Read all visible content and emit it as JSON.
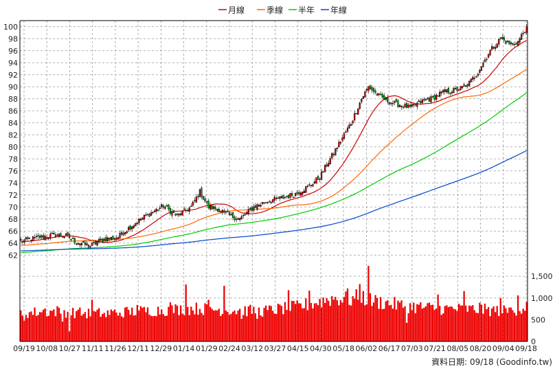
{
  "chart_data": {
    "type": "candlestick",
    "legend": {
      "placement": "top-center",
      "items": [
        {
          "label": "月線",
          "color": "#cc0000"
        },
        {
          "label": "季線",
          "color": "#ff6600"
        },
        {
          "label": "半年",
          "color": "#00cc00"
        },
        {
          "label": "年線",
          "color": "#0044cc"
        }
      ]
    },
    "price_axis": {
      "ylim": [
        61,
        101
      ],
      "ticks": [
        62,
        64,
        66,
        68,
        70,
        72,
        74,
        76,
        78,
        80,
        82,
        84,
        86,
        88,
        90,
        92,
        94,
        96,
        98,
        100
      ],
      "side": "left",
      "grid": true
    },
    "volume_axis": {
      "ylim": [
        0,
        1850
      ],
      "ticks": [
        0,
        500,
        1000,
        1500
      ],
      "tick_labels": [
        "0",
        "500",
        "1,000",
        "1,500"
      ],
      "side": "right",
      "grid": true
    },
    "x_tick_labels": [
      "09/19",
      "10/08",
      "10/27",
      "11/11",
      "11/26",
      "12/11",
      "12/29",
      "01/14",
      "01/29",
      "02/24",
      "03/12",
      "03/27",
      "04/15",
      "04/30",
      "05/18",
      "06/02",
      "06/17",
      "07/03",
      "07/21",
      "08/05",
      "08/20",
      "09/04",
      "09/18"
    ],
    "price_anchors": [
      [
        0,
        64.3
      ],
      [
        10,
        64.9
      ],
      [
        20,
        65.4
      ],
      [
        26,
        65.2
      ],
      [
        32,
        64.2
      ],
      [
        40,
        63.5
      ],
      [
        46,
        64.5
      ],
      [
        56,
        65.0
      ],
      [
        62,
        66.5
      ],
      [
        68,
        67.8
      ],
      [
        76,
        69.2
      ],
      [
        82,
        70.2
      ],
      [
        90,
        68.5
      ],
      [
        98,
        70.0
      ],
      [
        103,
        72.5
      ],
      [
        108,
        70.0
      ],
      [
        114,
        69.6
      ],
      [
        120,
        68.6
      ],
      [
        126,
        68.0
      ],
      [
        134,
        70.0
      ],
      [
        142,
        71.0
      ],
      [
        150,
        71.5
      ],
      [
        158,
        72.2
      ],
      [
        166,
        73.5
      ],
      [
        172,
        75.0
      ],
      [
        178,
        78.0
      ],
      [
        184,
        81.0
      ],
      [
        190,
        84.0
      ],
      [
        196,
        88.0
      ],
      [
        200,
        90.0
      ],
      [
        206,
        88.5
      ],
      [
        212,
        87.5
      ],
      [
        218,
        87.0
      ],
      [
        224,
        86.5
      ],
      [
        230,
        87.5
      ],
      [
        236,
        88.0
      ],
      [
        242,
        89.0
      ],
      [
        250,
        89.5
      ],
      [
        256,
        90.0
      ],
      [
        262,
        92.0
      ],
      [
        266,
        94.0
      ],
      [
        270,
        96.0
      ],
      [
        276,
        98.0
      ],
      [
        282,
        97.0
      ],
      [
        286,
        97.5
      ],
      [
        290,
        99.5
      ]
    ],
    "volume_anchors": [
      [
        0,
        650
      ],
      [
        20,
        700
      ],
      [
        40,
        640
      ],
      [
        60,
        680
      ],
      [
        80,
        720
      ],
      [
        100,
        760
      ],
      [
        120,
        720
      ],
      [
        140,
        700
      ],
      [
        160,
        800
      ],
      [
        170,
        900
      ],
      [
        180,
        1000
      ],
      [
        190,
        960
      ],
      [
        196,
        1050
      ],
      [
        200,
        950
      ],
      [
        220,
        820
      ],
      [
        240,
        760
      ],
      [
        260,
        740
      ],
      [
        280,
        700
      ],
      [
        290,
        780
      ]
    ],
    "volume_spikes": [
      [
        2,
        480
      ],
      [
        14,
        760
      ],
      [
        24,
        460
      ],
      [
        28,
        230
      ],
      [
        33,
        730
      ],
      [
        41,
        960
      ],
      [
        49,
        560
      ],
      [
        58,
        580
      ],
      [
        67,
        840
      ],
      [
        75,
        590
      ],
      [
        86,
        900
      ],
      [
        95,
        1310
      ],
      [
        108,
        960
      ],
      [
        117,
        1280
      ],
      [
        127,
        520
      ],
      [
        136,
        520
      ],
      [
        154,
        1180
      ],
      [
        166,
        1170
      ],
      [
        188,
        1220
      ],
      [
        195,
        1320
      ],
      [
        200,
        1740
      ],
      [
        222,
        430
      ],
      [
        240,
        1080
      ],
      [
        255,
        1160
      ],
      [
        264,
        890
      ],
      [
        276,
        1000
      ],
      [
        282,
        780
      ],
      [
        286,
        1060
      ],
      [
        291,
        910
      ]
    ],
    "source_label": "資料日期: 09/18 (Goodinfo.tw)"
  }
}
